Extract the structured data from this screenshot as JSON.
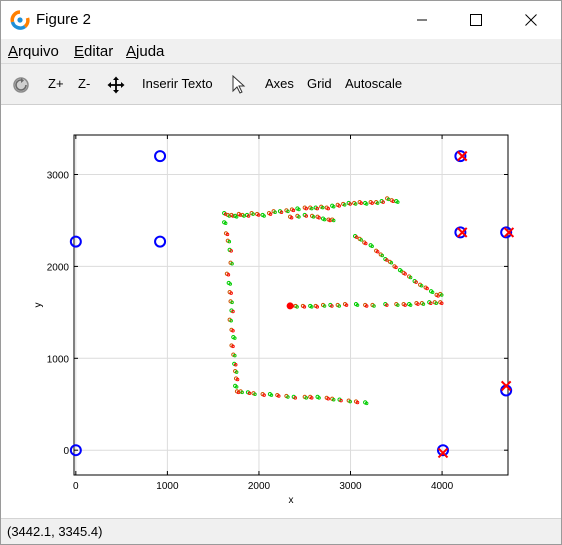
{
  "window": {
    "title": "Figure 2",
    "controls": {
      "minimize": "minimize",
      "maximize": "maximize",
      "close": "close"
    }
  },
  "menu": {
    "items": [
      {
        "label": "Arquivo",
        "accel": "A",
        "rest": "rquivo"
      },
      {
        "label": "Editar",
        "accel": "E",
        "rest": "ditar"
      },
      {
        "label": "Ajuda",
        "accel": "A",
        "rest": "juda"
      }
    ]
  },
  "toolbar": {
    "reset_icon": "reset-icon",
    "zoom_in": "Z+",
    "zoom_out": "Z-",
    "pan_icon": "move-arrows-icon",
    "insert_text": "Inserir Texto",
    "pointer_icon": "cursor-arrow-icon",
    "axes": "Axes",
    "grid": "Grid",
    "autoscale": "Autoscale"
  },
  "status": {
    "coordinates": "(3442.1, 3345.4)"
  },
  "chart_data": {
    "type": "scatter",
    "title": "",
    "xlabel": "x",
    "ylabel": "y",
    "xlim": [
      -20,
      4720
    ],
    "ylim": [
      -270,
      3430
    ],
    "xticks": [
      0,
      1000,
      2000,
      3000,
      4000
    ],
    "yticks": [
      0,
      1000,
      2000,
      3000
    ],
    "grid": true,
    "colors": {
      "blue": "#0000ff",
      "red": "#ff0000",
      "green": "#00cc00",
      "orange": "#cc5500"
    },
    "series": [
      {
        "marker": "blue-circle",
        "points": [
          [
            0,
            0
          ],
          [
            0,
            2270
          ],
          [
            920,
            3200
          ],
          [
            920,
            2270
          ],
          [
            4200,
            3200
          ],
          [
            4200,
            2370
          ],
          [
            4700,
            2370
          ],
          [
            4700,
            650
          ],
          [
            4010,
            0
          ]
        ]
      },
      {
        "marker": "red-x",
        "points": [
          [
            4220,
            3200
          ],
          [
            4220,
            2370
          ],
          [
            4730,
            2370
          ],
          [
            4700,
            700
          ],
          [
            4010,
            -30
          ]
        ]
      },
      {
        "marker": "small-dots",
        "points": [
          [
            1620,
            2580
          ],
          [
            1660,
            2560
          ],
          [
            1700,
            2560
          ],
          [
            1740,
            2550
          ],
          [
            1780,
            2570
          ],
          [
            1820,
            2560
          ],
          [
            1870,
            2560
          ],
          [
            1920,
            2580
          ],
          [
            1980,
            2570
          ],
          [
            2040,
            2560
          ],
          [
            2110,
            2580
          ],
          [
            2160,
            2600
          ],
          [
            2230,
            2600
          ],
          [
            2300,
            2610
          ],
          [
            2360,
            2620
          ],
          [
            2420,
            2630
          ],
          [
            2500,
            2640
          ],
          [
            2560,
            2640
          ],
          [
            2620,
            2640
          ],
          [
            2680,
            2650
          ],
          [
            2740,
            2640
          ],
          [
            2800,
            2660
          ],
          [
            2860,
            2670
          ],
          [
            2920,
            2680
          ],
          [
            2980,
            2690
          ],
          [
            3040,
            2690
          ],
          [
            3100,
            2700
          ],
          [
            3160,
            2690
          ],
          [
            3220,
            2700
          ],
          [
            3280,
            2700
          ],
          [
            3340,
            2710
          ],
          [
            3400,
            2740
          ],
          [
            3450,
            2720
          ],
          [
            3500,
            2710
          ],
          [
            2340,
            2540
          ],
          [
            2420,
            2550
          ],
          [
            2500,
            2560
          ],
          [
            2580,
            2550
          ],
          [
            2640,
            2540
          ],
          [
            2700,
            2520
          ],
          [
            2760,
            2510
          ],
          [
            2800,
            2510
          ],
          [
            3050,
            2330
          ],
          [
            3100,
            2300
          ],
          [
            3150,
            2260
          ],
          [
            3220,
            2230
          ],
          [
            3280,
            2170
          ],
          [
            3330,
            2130
          ],
          [
            3380,
            2080
          ],
          [
            3430,
            2050
          ],
          [
            3480,
            2000
          ],
          [
            3540,
            1960
          ],
          [
            3580,
            1930
          ],
          [
            3640,
            1890
          ],
          [
            3700,
            1840
          ],
          [
            3760,
            1800
          ],
          [
            3820,
            1770
          ],
          [
            3880,
            1730
          ],
          [
            3940,
            1690
          ],
          [
            3980,
            1700
          ],
          [
            2350,
            1580
          ],
          [
            2400,
            1570
          ],
          [
            2480,
            1570
          ],
          [
            2560,
            1570
          ],
          [
            2620,
            1570
          ],
          [
            2700,
            1580
          ],
          [
            2780,
            1580
          ],
          [
            2860,
            1580
          ],
          [
            2940,
            1590
          ],
          [
            3060,
            1590
          ],
          [
            3160,
            1580
          ],
          [
            3240,
            1580
          ],
          [
            3380,
            1590
          ],
          [
            3500,
            1590
          ],
          [
            3580,
            1590
          ],
          [
            3640,
            1590
          ],
          [
            3720,
            1600
          ],
          [
            3780,
            1600
          ],
          [
            3860,
            1610
          ],
          [
            3920,
            1610
          ],
          [
            3980,
            1610
          ],
          [
            1620,
            2480
          ],
          [
            1640,
            2360
          ],
          [
            1660,
            2280
          ],
          [
            1680,
            2180
          ],
          [
            1690,
            2040
          ],
          [
            1650,
            1920
          ],
          [
            1670,
            1820
          ],
          [
            1680,
            1720
          ],
          [
            1690,
            1620
          ],
          [
            1700,
            1520
          ],
          [
            1680,
            1420
          ],
          [
            1700,
            1310
          ],
          [
            1720,
            1230
          ],
          [
            1700,
            1140
          ],
          [
            1720,
            1040
          ],
          [
            1730,
            940
          ],
          [
            1740,
            860
          ],
          [
            1750,
            780
          ],
          [
            1740,
            700
          ],
          [
            1760,
            640
          ],
          [
            1800,
            640
          ],
          [
            1880,
            630
          ],
          [
            1940,
            620
          ],
          [
            2040,
            610
          ],
          [
            2120,
            610
          ],
          [
            2200,
            600
          ],
          [
            2300,
            590
          ],
          [
            2380,
            580
          ],
          [
            2500,
            580
          ],
          [
            2560,
            580
          ],
          [
            2640,
            580
          ],
          [
            2740,
            570
          ],
          [
            2800,
            560
          ],
          [
            2880,
            550
          ],
          [
            2980,
            540
          ],
          [
            3060,
            530
          ],
          [
            3160,
            520
          ]
        ]
      }
    ]
  }
}
